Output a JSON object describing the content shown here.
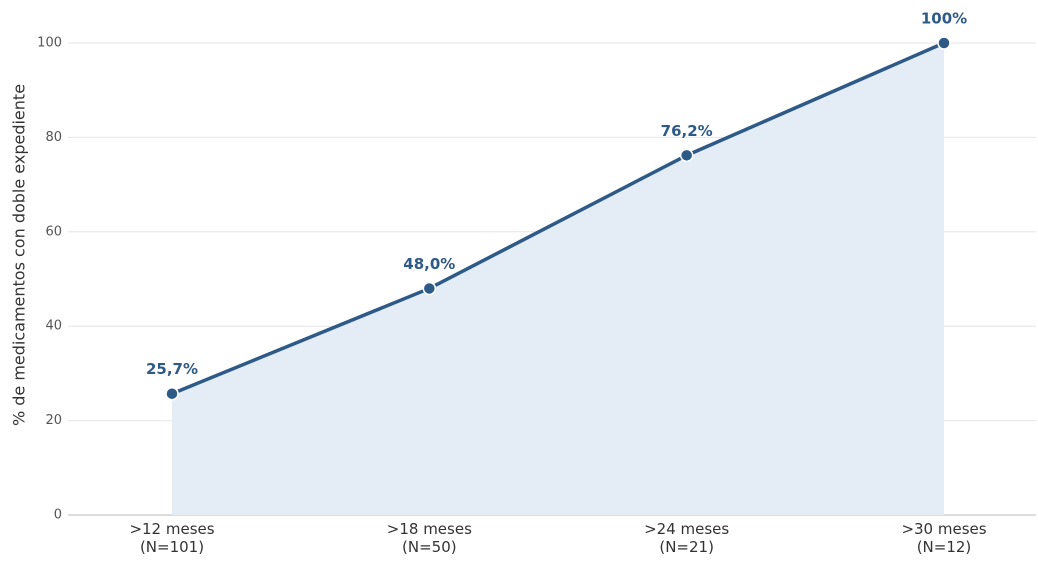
{
  "chart_data": {
    "type": "line",
    "y_label": "% de medicamentos con doble expediente",
    "categories": [
      ">12 meses\n(N=101)",
      ">18 meses\n(N=50)",
      ">24 meses\n(N=21)",
      ">30 meses\n(N=12)"
    ],
    "values": [
      25.7,
      48.0,
      76.2,
      100
    ],
    "value_labels": [
      "25,7%",
      "48,0%",
      "76,2%",
      "100%"
    ],
    "color": "#2e5a87",
    "fill": "#e4edf6",
    "ylim": [
      0,
      100
    ],
    "yticks": [
      0,
      20,
      40,
      60,
      80,
      100
    ],
    "grid": true
  }
}
